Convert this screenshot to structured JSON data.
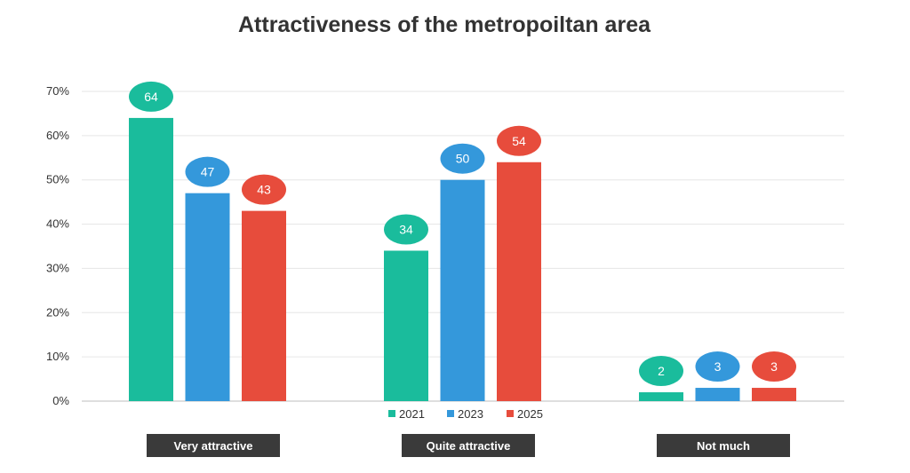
{
  "chart_data": {
    "type": "bar",
    "title": "Attractiveness of the metropoiltan area",
    "categories": [
      "Very attractive",
      "Quite attractive",
      "Not much"
    ],
    "series": [
      {
        "name": "2021",
        "color": "#1abc9c",
        "values": [
          64,
          34,
          2
        ]
      },
      {
        "name": "2023",
        "color": "#3498db",
        "values": [
          47,
          50,
          3
        ]
      },
      {
        "name": "2025",
        "color": "#e74c3c",
        "values": [
          43,
          54,
          3
        ]
      }
    ],
    "yticks": [
      "0%",
      "10%",
      "20%",
      "30%",
      "40%",
      "50%",
      "60%",
      "70%"
    ],
    "ylim": [
      0,
      70
    ],
    "grid": true,
    "legend_position": "bottom-center",
    "xlabel": "",
    "ylabel": ""
  }
}
